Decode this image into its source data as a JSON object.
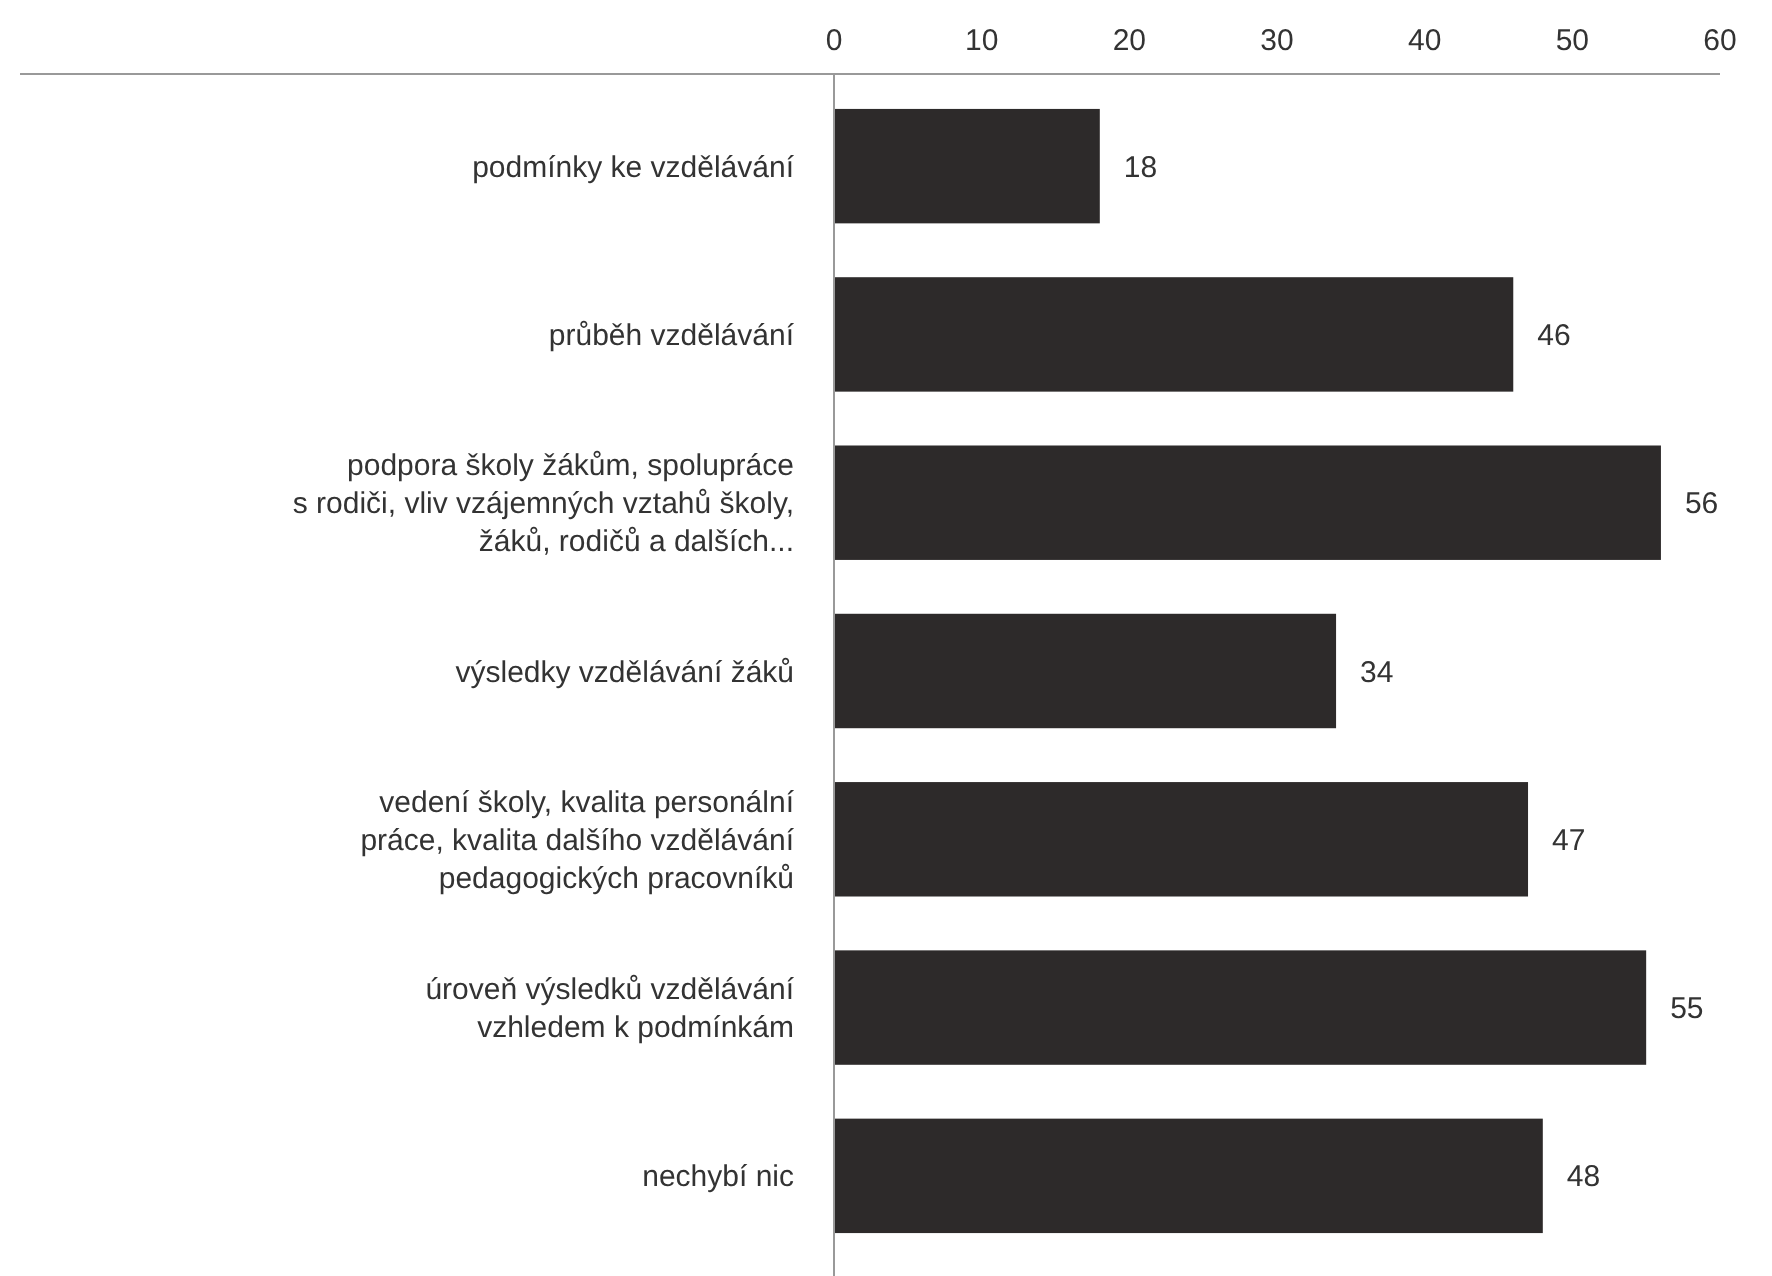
{
  "chart_data": {
    "type": "bar",
    "orientation": "horizontal",
    "categories": [
      "podmínky ke vzdělávání",
      "průběh vzdělávání",
      "podpora školy žákům, spolupráce\ns rodiči, vliv vzájemných vztahů školy,\nžáků, rodičů a dalších...",
      "výsledky vzdělávání žáků",
      "vedení školy, kvalita personální\npráce, kvalita dalšího vzdělávání\npedagogických pracovníků",
      "úroveň výsledků vzdělávání\nvzhledem k podmínkám",
      "nechybí nic"
    ],
    "values": [
      18,
      46,
      56,
      34,
      47,
      55,
      48
    ],
    "color": "#2d2a2a",
    "xlim": [
      0,
      60
    ],
    "xticks": [
      0,
      10,
      20,
      30,
      40,
      50,
      60
    ],
    "data_labels": true
  }
}
